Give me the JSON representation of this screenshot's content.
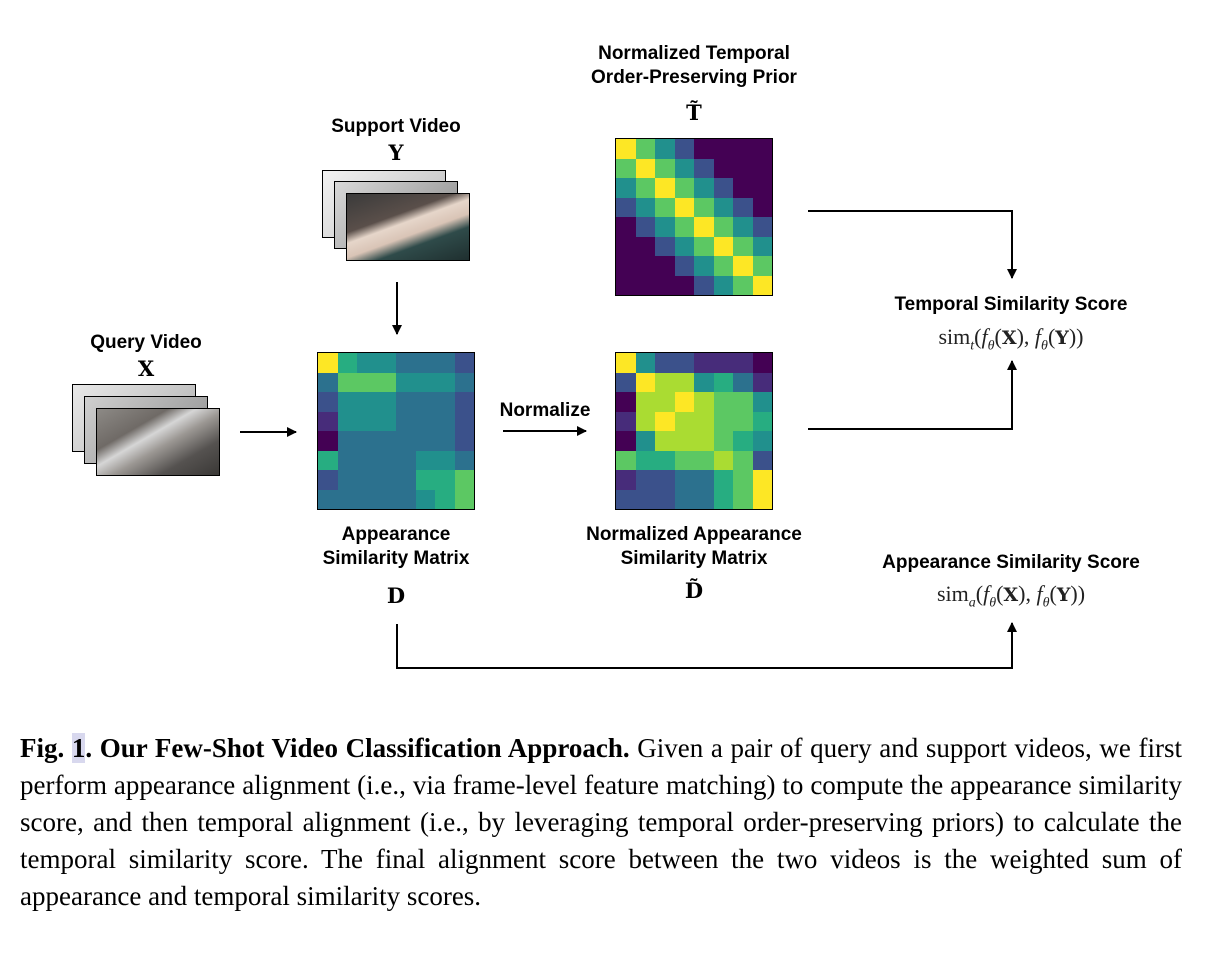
{
  "labels": {
    "support_video": "Support Video",
    "support_sym": "Y",
    "query_video": "Query Video",
    "query_sym": "X",
    "appearance_line1": "Appearance",
    "appearance_line2": "Similarity Matrix",
    "appearance_sym": "D",
    "normalize": "Normalize",
    "prior_line1": "Normalized Temporal",
    "prior_line2": "Order-Preserving Prior",
    "prior_sym": "T̃",
    "norm_app_line1": "Normalized Appearance",
    "norm_app_line2": "Similarity Matrix",
    "norm_app_sym": "D̃",
    "temporal_score": "Temporal Similarity Score",
    "temporal_score_sub": "t",
    "appearance_score": "Appearance Similarity Score",
    "appearance_score_sub": "a"
  },
  "math": {
    "sim": "sim",
    "f": "f",
    "theta": "θ",
    "X": "X",
    "Y": "Y"
  },
  "caption": {
    "fig": "Fig.",
    "num": "1",
    "title": ". Our Few-Shot Video Classification Approach.",
    "text": " Given a pair of query and support videos, we first perform appearance alignment (i.e., via frame-level feature matching) to compute the appearance similarity score, and then temporal alignment (i.e., by leveraging temporal order-preserving priors) to calculate the temporal similarity score. The final alignment score between the two videos is the weighted sum of appearance and temporal similarity scores."
  },
  "colors": {
    "viridis": [
      "#440154",
      "#472c7a",
      "#3b518b",
      "#2c718e",
      "#21908d",
      "#27ad81",
      "#5cc863",
      "#aadc32",
      "#fde725"
    ]
  },
  "matrices": {
    "appearance": [
      [
        8,
        5,
        4,
        4,
        3,
        3,
        3,
        2
      ],
      [
        3,
        6,
        6,
        6,
        4,
        4,
        4,
        3
      ],
      [
        2,
        4,
        4,
        4,
        3,
        3,
        3,
        2
      ],
      [
        1,
        4,
        4,
        4,
        3,
        3,
        3,
        2
      ],
      [
        0,
        3,
        3,
        3,
        3,
        3,
        3,
        2
      ],
      [
        5,
        3,
        3,
        3,
        3,
        4,
        4,
        3
      ],
      [
        2,
        3,
        3,
        3,
        3,
        5,
        5,
        6
      ],
      [
        3,
        3,
        3,
        3,
        3,
        4,
        5,
        6
      ]
    ],
    "normalized_appearance": [
      [
        8,
        4,
        2,
        2,
        1,
        1,
        1,
        0
      ],
      [
        2,
        8,
        7,
        7,
        4,
        5,
        3,
        1
      ],
      [
        0,
        7,
        7,
        8,
        7,
        6,
        6,
        4
      ],
      [
        1,
        7,
        8,
        7,
        7,
        6,
        6,
        5
      ],
      [
        0,
        4,
        7,
        7,
        7,
        6,
        5,
        4
      ],
      [
        6,
        5,
        5,
        6,
        6,
        7,
        6,
        2
      ],
      [
        1,
        2,
        2,
        3,
        3,
        5,
        6,
        8
      ],
      [
        2,
        2,
        2,
        3,
        3,
        5,
        6,
        8
      ]
    ],
    "prior": [
      [
        8,
        6,
        4,
        2,
        0,
        0,
        0,
        0
      ],
      [
        6,
        8,
        6,
        4,
        2,
        0,
        0,
        0
      ],
      [
        4,
        6,
        8,
        6,
        4,
        2,
        0,
        0
      ],
      [
        2,
        4,
        6,
        8,
        6,
        4,
        2,
        0
      ],
      [
        0,
        2,
        4,
        6,
        8,
        6,
        4,
        2
      ],
      [
        0,
        0,
        2,
        4,
        6,
        8,
        6,
        4
      ],
      [
        0,
        0,
        0,
        2,
        4,
        6,
        8,
        6
      ],
      [
        0,
        0,
        0,
        0,
        2,
        4,
        6,
        8
      ]
    ]
  }
}
